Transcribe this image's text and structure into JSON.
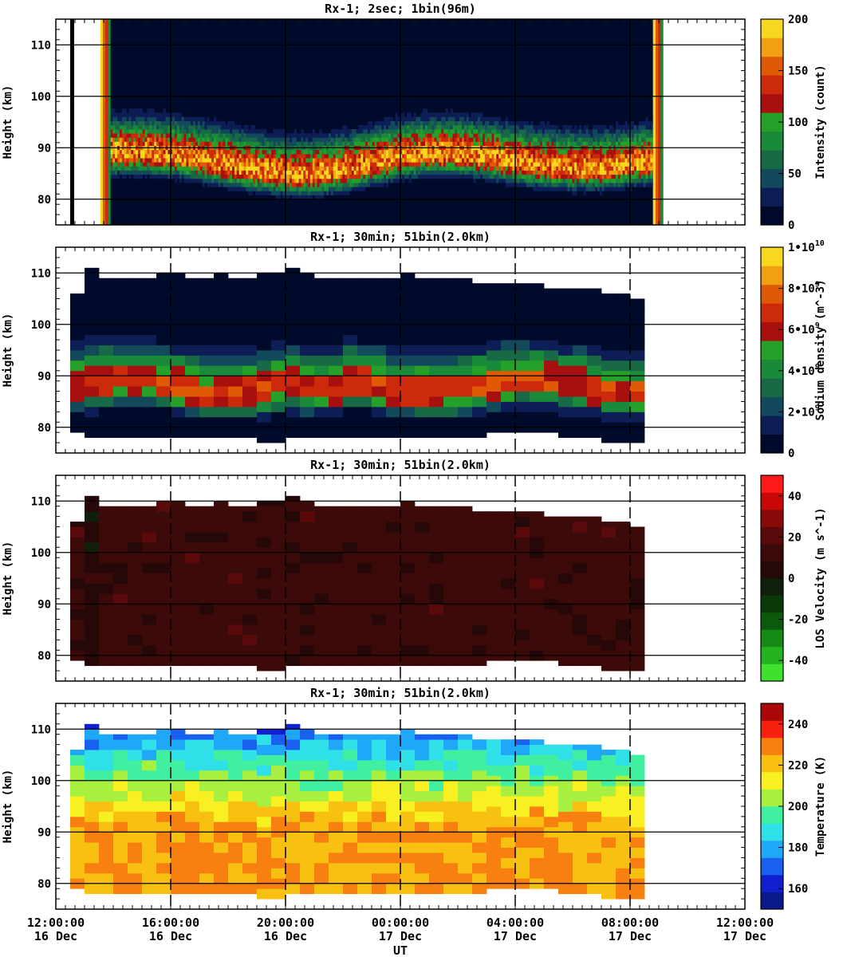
{
  "chart_data": [
    {
      "type": "heatmap",
      "title": "Rx-1;  2sec; 1bin(96m)",
      "ylabel": "Height (km)",
      "ylim": [
        75,
        115
      ],
      "yticks": [
        80,
        90,
        100,
        110
      ],
      "colorbar": {
        "label": "Intensity (count)",
        "range": [
          0,
          200
        ],
        "tick_labels": [
          "0",
          "50",
          "100",
          "150",
          "200"
        ],
        "tick_values": [
          0,
          50,
          100,
          150,
          200
        ],
        "colors": [
          "#000a2a",
          "#0c1e55",
          "#124a5c",
          "#176a45",
          "#1a8a3a",
          "#25a028",
          "#a81010",
          "#cc2a0a",
          "#e05a05",
          "#f0a010",
          "#f8d81e"
        ]
      },
      "layer": {
        "peak_height_km": 87,
        "peak_count": 170
      },
      "data_start_hour": 13.9,
      "data_end_hour": 32.8
    },
    {
      "type": "heatmap",
      "title": "Rx-1; 30min; 51bin(2.0km)",
      "ylabel": "Height (km)",
      "ylim": [
        75,
        115
      ],
      "yticks": [
        80,
        90,
        100,
        110
      ],
      "colorbar": {
        "label": "Sodium density (m^-3)",
        "range": [
          0,
          10000000000.0
        ],
        "tick_labels": [
          "0",
          "2•10",
          "4•10",
          "6•10",
          "8•10",
          "1•10"
        ],
        "tick_exponents": [
          "",
          "9",
          "9",
          "9",
          "9",
          "10"
        ],
        "tick_values": [
          0,
          2000000000.0,
          4000000000.0,
          6000000000.0,
          8000000000.0,
          10000000000.0
        ],
        "colors": [
          "#000a2a",
          "#0c1e55",
          "#124a5c",
          "#176a45",
          "#1a8a3a",
          "#25a028",
          "#a81010",
          "#cc2a0a",
          "#e05a05",
          "#f0a010",
          "#f8d81e"
        ]
      },
      "peak_density": 7200000000.0
    },
    {
      "type": "heatmap",
      "title": "Rx-1; 30min; 51bin(2.0km)",
      "ylabel": "Height (km)",
      "ylim": [
        75,
        115
      ],
      "yticks": [
        80,
        90,
        100,
        110
      ],
      "colorbar": {
        "label": "LOS Velocity (m s^-1)",
        "range": [
          -50,
          50
        ],
        "tick_labels": [
          "-40",
          "-20",
          "0",
          "20",
          "40"
        ],
        "tick_values": [
          -40,
          -20,
          0,
          20,
          40
        ],
        "colors": [
          "#3ee22e",
          "#23b31f",
          "#158a15",
          "#0d5a0d",
          "#0a3a0a",
          "#0f1f0a",
          "#260808",
          "#3d0a0a",
          "#5a0a0a",
          "#8a0a0a",
          "#c80808",
          "#ff1a1a"
        ]
      },
      "typical_velocity": 12
    },
    {
      "type": "heatmap",
      "title": "Rx-1; 30min; 51bin(2.0km)",
      "ylabel": "Height (km)",
      "xlabel": "UT",
      "ylim": [
        75,
        115
      ],
      "yticks": [
        80,
        90,
        100,
        110
      ],
      "colorbar": {
        "label": "Temperature (K)",
        "range": [
          150,
          250
        ],
        "tick_labels": [
          "160",
          "180",
          "200",
          "220",
          "240"
        ],
        "tick_values": [
          160,
          180,
          200,
          220,
          240
        ],
        "colors": [
          "#0a1a8a",
          "#1020d0",
          "#1a60f0",
          "#20a8f8",
          "#30e0e8",
          "#40f0a0",
          "#a8f040",
          "#f8f020",
          "#f8c010",
          "#f88010",
          "#f82010",
          "#a80808"
        ]
      },
      "temperature_profile": {
        "low_heights_K": 225,
        "mid_heights_K": 200,
        "high_heights_K": 168
      }
    }
  ],
  "xaxis": {
    "range_hours": [
      12,
      36
    ],
    "ticks": [
      {
        "hour": 12,
        "time": "12:00:00",
        "date": "16 Dec"
      },
      {
        "hour": 16,
        "time": "16:00:00",
        "date": "16 Dec"
      },
      {
        "hour": 20,
        "time": "20:00:00",
        "date": "16 Dec"
      },
      {
        "hour": 24,
        "time": "00:00:00",
        "date": "17 Dec"
      },
      {
        "hour": 28,
        "time": "04:00:00",
        "date": "17 Dec"
      },
      {
        "hour": 32,
        "time": "08:00:00",
        "date": "17 Dec"
      },
      {
        "hour": 36,
        "time": "12:00:00",
        "date": "17 Dec"
      }
    ],
    "label": "UT"
  },
  "binned_data_range_hours": [
    12.5,
    32.5
  ],
  "layer_top_km": [
    106,
    111,
    109,
    109,
    109,
    109,
    110,
    110,
    109,
    109,
    110,
    109,
    109,
    110,
    110,
    111,
    110,
    109,
    109,
    109,
    109,
    109,
    109,
    110,
    109,
    109,
    109,
    109,
    108,
    108,
    108,
    108,
    108,
    107,
    107,
    107,
    107,
    106,
    106,
    105
  ],
  "layer_bottom_km": [
    79,
    78.5,
    78.5,
    78.5,
    78.5,
    78.5,
    78.5,
    78.5,
    78,
    78,
    78,
    78.5,
    78,
    77.5,
    77.5,
    78,
    78,
    78,
    78,
    78.5,
    78.5,
    78,
    78,
    78,
    78.5,
    78.5,
    78,
    78,
    78.5,
    79,
    79,
    79,
    79,
    79,
    78.5,
    78.5,
    78,
    77.5,
    77.5,
    77.5
  ]
}
